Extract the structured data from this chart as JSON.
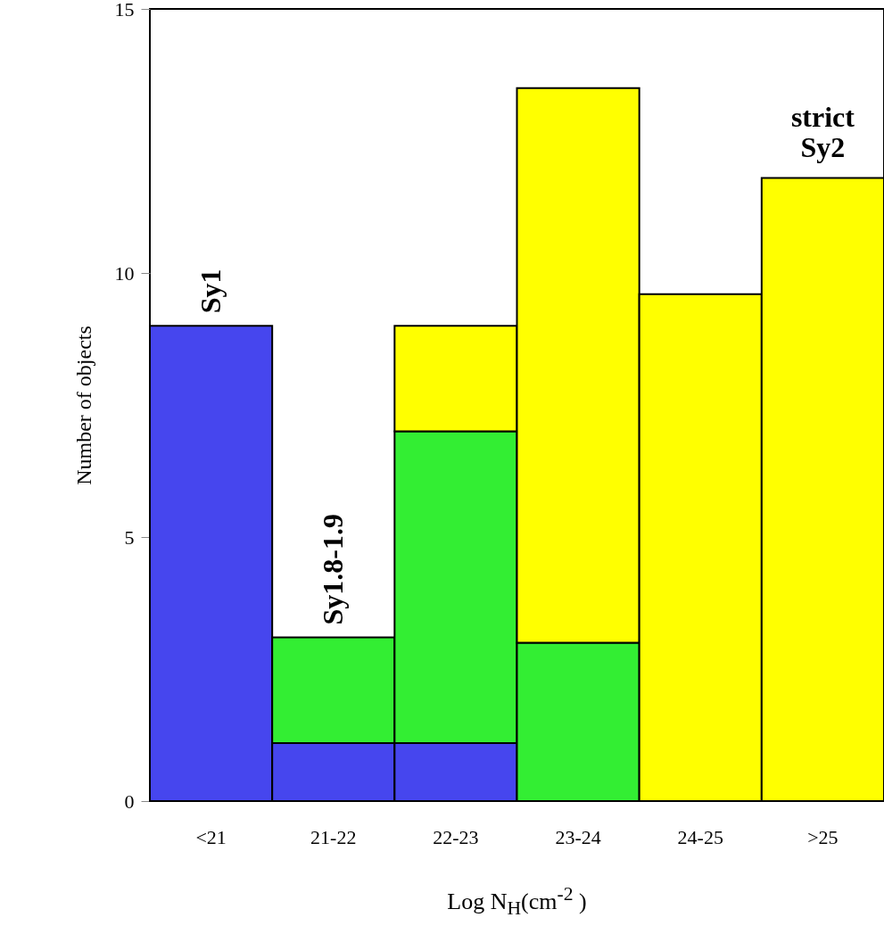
{
  "chart_data": {
    "type": "bar",
    "stacked": true,
    "categories": [
      "<21",
      "21-22",
      "22-23",
      "23-24",
      "24-25",
      ">25"
    ],
    "series": [
      {
        "name": "Sy1",
        "color": "#4646ee",
        "values": [
          9,
          1.1,
          1.1,
          null,
          null,
          null
        ]
      },
      {
        "name": "Sy1.8-1.9",
        "color": "#33ee33",
        "values": [
          null,
          2.0,
          5.9,
          3,
          null,
          null
        ]
      },
      {
        "name": "strict Sy2",
        "color": "#ffff00",
        "values": [
          null,
          null,
          2.0,
          10.5,
          9.6,
          11.8
        ]
      }
    ],
    "ylim": [
      0,
      15
    ],
    "yticks": [
      0,
      5,
      10,
      15
    ],
    "xlabel": "Log N$_{H}$(cm$^{-2}$ )",
    "ylabel": "Number of objects"
  }
}
